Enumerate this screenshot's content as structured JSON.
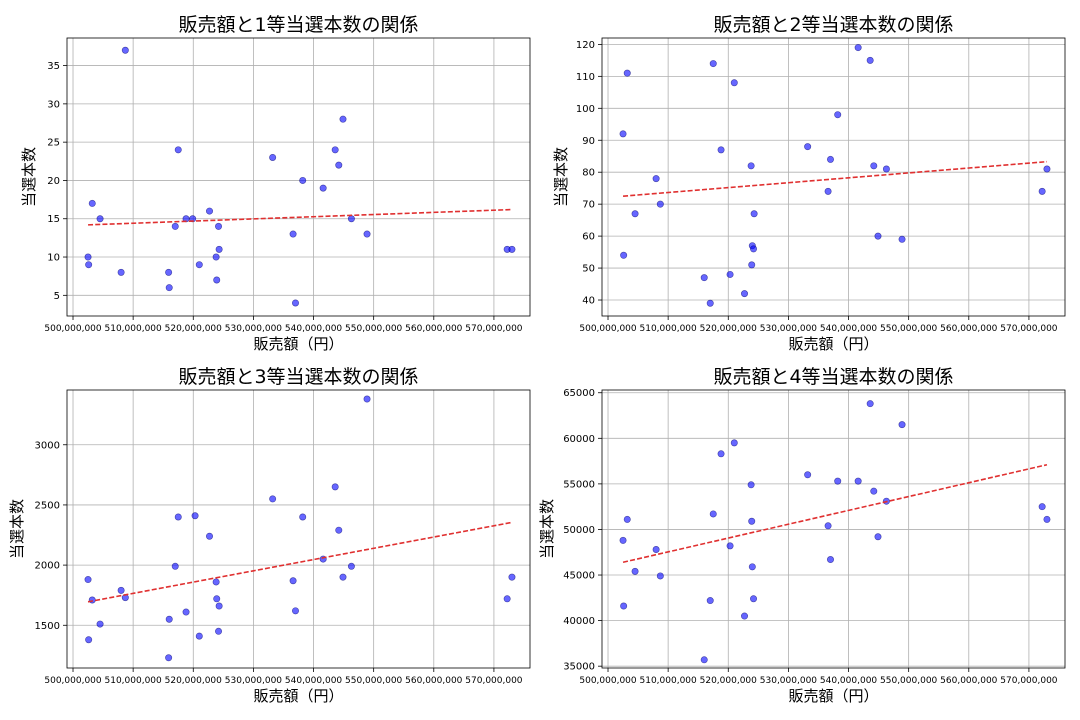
{
  "colors": {
    "point": "#0000ff",
    "trend": "#e03030",
    "grid": "#b0b0b0"
  },
  "chart_data": [
    {
      "type": "scatter",
      "title": "販売額と1等当選本数の関係",
      "xlabel": "販売額（円）",
      "ylabel": "当選本数",
      "xlim": [
        499000000,
        576000000
      ],
      "ylim": [
        2.3,
        38.6
      ],
      "xticks": [
        500000000,
        510000000,
        520000000,
        530000000,
        540000000,
        550000000,
        560000000,
        570000000
      ],
      "xtick_labels": [
        "500,000,000",
        "510,000,000",
        "520,000,000",
        "530,000,000",
        "540,000,000",
        "550,000,000",
        "560,000,000",
        "570,000,000"
      ],
      "yticks": [
        5,
        10,
        15,
        20,
        25,
        30,
        35
      ],
      "ytick_labels": [
        "5",
        "10",
        "15",
        "20",
        "25",
        "30",
        "35"
      ],
      "grid": true,
      "x": [
        502500000,
        502600000,
        503200000,
        504500000,
        508000000,
        508700000,
        515900000,
        516000000,
        517000000,
        517500000,
        518800000,
        519900000,
        521000000,
        522700000,
        523800000,
        523900000,
        524200000,
        524300000,
        533200000,
        536600000,
        537000000,
        538200000,
        541600000,
        543600000,
        544200000,
        544900000,
        546300000,
        548900000,
        572200000,
        573000000
      ],
      "y": [
        10,
        9,
        17,
        15,
        8,
        37,
        8,
        6,
        14,
        24,
        15,
        15,
        9,
        16,
        10,
        7,
        14,
        11,
        23,
        13,
        4,
        20,
        19,
        24,
        22,
        28,
        15,
        13,
        11,
        11
      ],
      "trend": {
        "x": [
          502500000,
          573000000
        ],
        "y": [
          14.2,
          16.2
        ]
      }
    },
    {
      "type": "scatter",
      "title": "販売額と2等当選本数の関係",
      "xlabel": "販売額（円）",
      "ylabel": "当選本数",
      "xlim": [
        499000000,
        576000000
      ],
      "ylim": [
        35,
        122
      ],
      "xticks": [
        500000000,
        510000000,
        520000000,
        530000000,
        540000000,
        550000000,
        560000000,
        570000000
      ],
      "xtick_labels": [
        "500,000,000",
        "510,000,000",
        "520,000,000",
        "530,000,000",
        "540,000,000",
        "550,000,000",
        "560,000,000",
        "570,000,000"
      ],
      "yticks": [
        40,
        50,
        60,
        70,
        80,
        90,
        100,
        110,
        120
      ],
      "ytick_labels": [
        "40",
        "50",
        "60",
        "70",
        "80",
        "90",
        "100",
        "110",
        "120"
      ],
      "grid": true,
      "x": [
        502500000,
        502600000,
        503200000,
        504500000,
        508000000,
        508700000,
        516000000,
        517000000,
        517500000,
        518800000,
        520300000,
        521000000,
        522700000,
        523800000,
        523900000,
        524000000,
        524200000,
        524300000,
        533200000,
        536600000,
        537000000,
        538200000,
        541600000,
        543600000,
        544200000,
        544900000,
        546300000,
        548900000,
        572200000,
        573000000
      ],
      "y": [
        92,
        54,
        111,
        67,
        78,
        70,
        47,
        39,
        114,
        87,
        48,
        108,
        42,
        82,
        51,
        57,
        56,
        67,
        88,
        74,
        84,
        98,
        119,
        115,
        82,
        60,
        81,
        59,
        74,
        81
      ],
      "trend": {
        "x": [
          502500000,
          573000000
        ],
        "y": [
          72.5,
          83.3
        ]
      }
    },
    {
      "type": "scatter",
      "title": "販売額と3等当選本数の関係",
      "xlabel": "販売額（円）",
      "ylabel": "当選本数",
      "xlim": [
        499000000,
        576000000
      ],
      "ylim": [
        1145,
        3455
      ],
      "xticks": [
        500000000,
        510000000,
        520000000,
        530000000,
        540000000,
        550000000,
        560000000,
        570000000
      ],
      "xtick_labels": [
        "500,000,000",
        "510,000,000",
        "520,000,000",
        "530,000,000",
        "540,000,000",
        "550,000,000",
        "560,000,000",
        "570,000,000"
      ],
      "yticks": [
        1500,
        2000,
        2500,
        3000
      ],
      "ytick_labels": [
        "1500",
        "2000",
        "2500",
        "3000"
      ],
      "grid": true,
      "x": [
        502500000,
        502600000,
        503200000,
        504500000,
        508000000,
        508700000,
        515900000,
        516000000,
        517000000,
        517500000,
        518800000,
        520300000,
        521000000,
        522700000,
        523800000,
        523900000,
        524200000,
        524300000,
        533200000,
        536600000,
        537000000,
        538200000,
        541600000,
        543600000,
        544200000,
        544900000,
        546300000,
        548900000,
        572200000,
        573000000
      ],
      "y": [
        1880,
        1380,
        1710,
        1510,
        1790,
        1730,
        1230,
        1550,
        1990,
        2400,
        1610,
        2410,
        1410,
        2240,
        1860,
        1720,
        1450,
        1660,
        2550,
        1870,
        1620,
        2400,
        2050,
        2650,
        2290,
        1900,
        1990,
        3380,
        1720,
        1900
      ],
      "trend": {
        "x": [
          502500000,
          573000000
        ],
        "y": [
          1695,
          2355
        ]
      }
    },
    {
      "type": "scatter",
      "title": "販売額と4等当選本数の関係",
      "xlabel": "販売額（円）",
      "ylabel": "当選本数",
      "xlim": [
        499000000,
        576000000
      ],
      "ylim": [
        34800,
        65300
      ],
      "xticks": [
        500000000,
        510000000,
        520000000,
        530000000,
        540000000,
        550000000,
        560000000,
        570000000
      ],
      "xtick_labels": [
        "500,000,000",
        "510,000,000",
        "520,000,000",
        "530,000,000",
        "540,000,000",
        "550,000,000",
        "560,000,000",
        "570,000,000"
      ],
      "yticks": [
        35000,
        40000,
        45000,
        50000,
        55000,
        60000,
        65000
      ],
      "ytick_labels": [
        "35000",
        "40000",
        "45000",
        "50000",
        "55000",
        "60000",
        "65000"
      ],
      "grid": true,
      "x": [
        502500000,
        502600000,
        503200000,
        504500000,
        508000000,
        508700000,
        516000000,
        517000000,
        517500000,
        518800000,
        520300000,
        521000000,
        522700000,
        523800000,
        523900000,
        524000000,
        524200000,
        533200000,
        536600000,
        537000000,
        538200000,
        541600000,
        543600000,
        544200000,
        544900000,
        546300000,
        548900000,
        572200000,
        573000000
      ],
      "y": [
        48800,
        41600,
        51100,
        45400,
        47800,
        44900,
        35700,
        42200,
        51700,
        58300,
        48200,
        59500,
        40500,
        54900,
        50900,
        45900,
        42400,
        56000,
        50400,
        46700,
        55300,
        55300,
        63800,
        54200,
        49200,
        53100,
        61500,
        52500,
        51100
      ],
      "trend": {
        "x": [
          502500000,
          573000000
        ],
        "y": [
          46400,
          57100
        ]
      }
    }
  ]
}
